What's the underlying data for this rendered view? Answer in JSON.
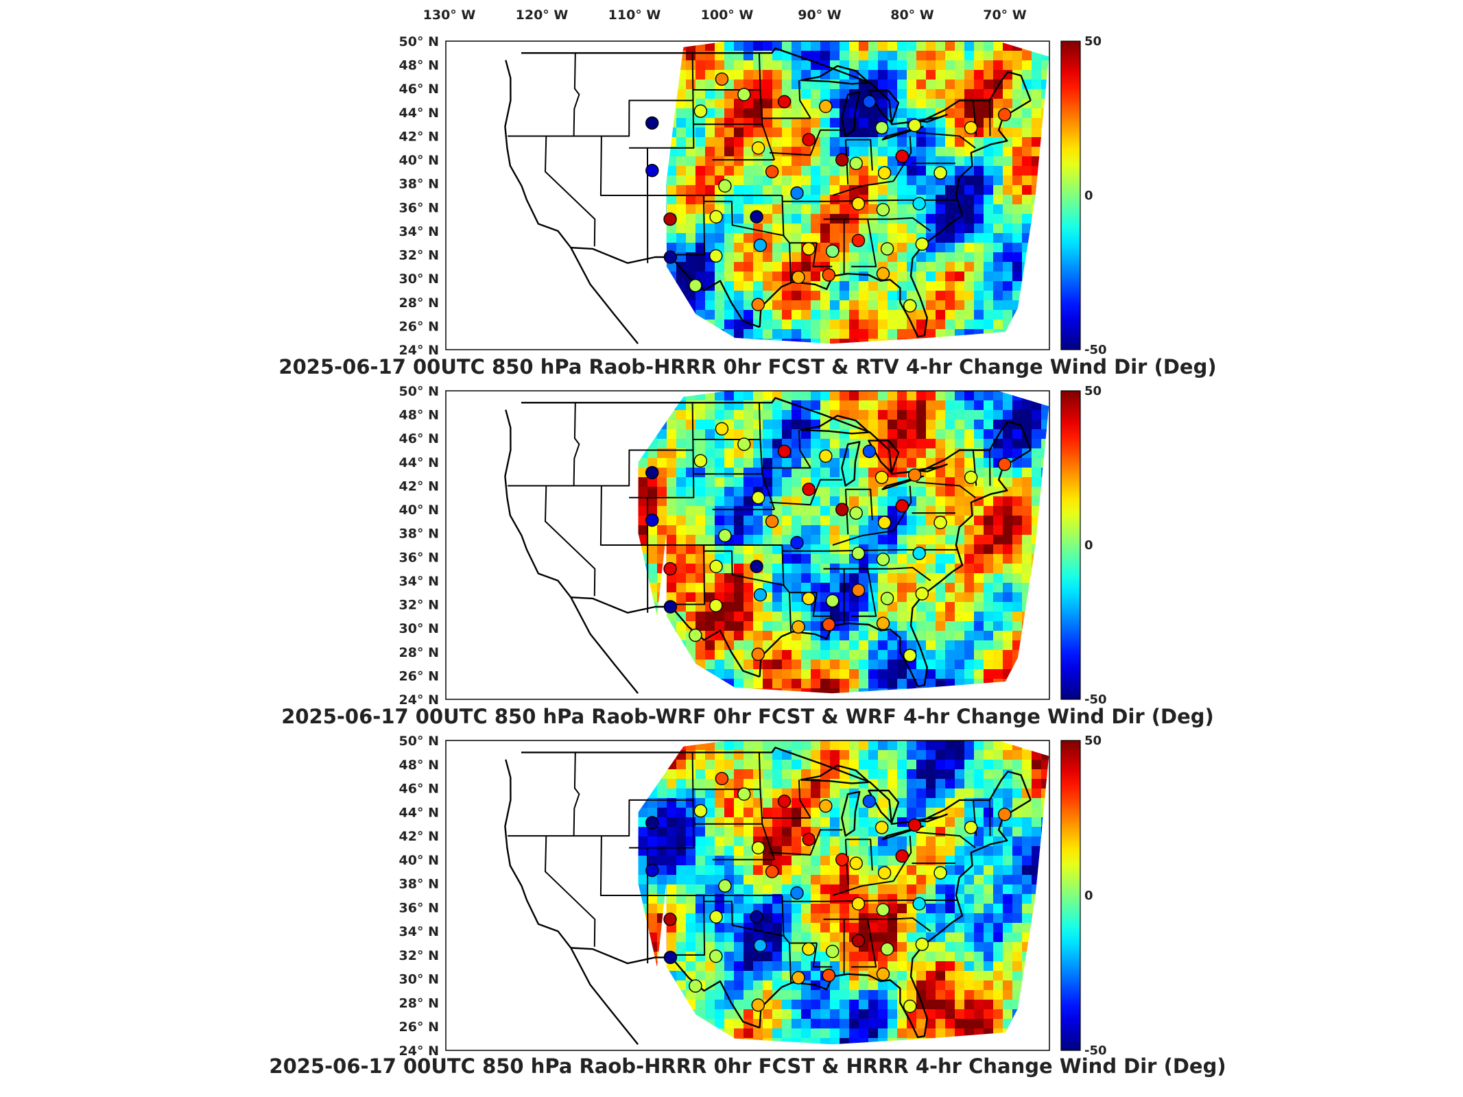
{
  "lon_labels": [
    "130° W",
    "120° W",
    "110° W",
    "100° W",
    "90° W",
    "80° W",
    "70° W"
  ],
  "lat_labels": [
    "50° N",
    "48° N",
    "46° N",
    "44° N",
    "42° N",
    "40° N",
    "38° N",
    "36° N",
    "34° N",
    "32° N",
    "30° N",
    "28° N",
    "26° N",
    "24° N"
  ],
  "colorbar": {
    "max_label": "50",
    "zero_label": "0",
    "min_label": "-50",
    "units": "Deg"
  },
  "panels": [
    {
      "title": "2025-06-17 00UTC 850 hPa Raob-HRRR 0hr FCST & RTV 4-hr Change Wind Dir (Deg)",
      "raobs": [
        {
          "lon": -108.5,
          "lat": 43.1,
          "value": -50
        },
        {
          "lon": -108.5,
          "lat": 39.1,
          "value": -42
        },
        {
          "lon": -106.6,
          "lat": 35.0,
          "value": 45
        },
        {
          "lon": -106.6,
          "lat": 31.8,
          "value": -48
        },
        {
          "lon": -100.8,
          "lat": 46.8,
          "value": 25
        },
        {
          "lon": -98.4,
          "lat": 45.5,
          "value": 5
        },
        {
          "lon": -94.0,
          "lat": 44.9,
          "value": 40
        },
        {
          "lon": -103.2,
          "lat": 44.1,
          "value": 10
        },
        {
          "lon": -89.5,
          "lat": 44.5,
          "value": 20
        },
        {
          "lon": -84.7,
          "lat": 44.9,
          "value": -30
        },
        {
          "lon": -83.5,
          "lat": 42.7,
          "value": 5
        },
        {
          "lon": -79.9,
          "lat": 42.9,
          "value": 10
        },
        {
          "lon": -73.8,
          "lat": 42.7,
          "value": 15
        },
        {
          "lon": -70.0,
          "lat": 43.8,
          "value": 30
        },
        {
          "lon": -95.6,
          "lat": 39.0,
          "value": 30
        },
        {
          "lon": -97.0,
          "lat": 41.0,
          "value": 15
        },
        {
          "lon": -91.5,
          "lat": 41.7,
          "value": 40
        },
        {
          "lon": -88.0,
          "lat": 40.0,
          "value": 45
        },
        {
          "lon": -86.5,
          "lat": 39.7,
          "value": 5
        },
        {
          "lon": -81.5,
          "lat": 40.3,
          "value": 40
        },
        {
          "lon": -77.5,
          "lat": 38.9,
          "value": 10
        },
        {
          "lon": -83.5,
          "lat": 38.9,
          "value": 15
        },
        {
          "lon": -100.7,
          "lat": 37.8,
          "value": 5
        },
        {
          "lon": -93.0,
          "lat": 37.2,
          "value": -25
        },
        {
          "lon": -86.5,
          "lat": 36.3,
          "value": 15
        },
        {
          "lon": -83.9,
          "lat": 35.8,
          "value": 5
        },
        {
          "lon": -80.0,
          "lat": 36.3,
          "value": -15
        },
        {
          "lon": -97.4,
          "lat": 35.2,
          "value": -48
        },
        {
          "lon": -101.7,
          "lat": 35.2,
          "value": 10
        },
        {
          "lon": -97.1,
          "lat": 32.8,
          "value": -20
        },
        {
          "lon": -92.0,
          "lat": 32.5,
          "value": 15
        },
        {
          "lon": -89.5,
          "lat": 32.3,
          "value": 0
        },
        {
          "lon": -86.7,
          "lat": 33.2,
          "value": 35
        },
        {
          "lon": -83.7,
          "lat": 32.5,
          "value": 5
        },
        {
          "lon": -80.0,
          "lat": 32.9,
          "value": 10
        },
        {
          "lon": -101.8,
          "lat": 31.9,
          "value": 10
        },
        {
          "lon": -104.0,
          "lat": 29.4,
          "value": 5
        },
        {
          "lon": -97.5,
          "lat": 27.8,
          "value": 25
        },
        {
          "lon": -93.2,
          "lat": 30.1,
          "value": 20
        },
        {
          "lon": -90.0,
          "lat": 30.3,
          "value": 30
        },
        {
          "lon": -84.3,
          "lat": 30.4,
          "value": 20
        },
        {
          "lon": -81.7,
          "lat": 27.7,
          "value": 10
        }
      ]
    },
    {
      "title": "2025-06-17 00UTC 850 hPa Raob-WRF 0hr FCST & WRF 4-hr Change Wind Dir (Deg)",
      "raobs": [
        {
          "lon": -108.5,
          "lat": 43.1,
          "value": -50
        },
        {
          "lon": -108.5,
          "lat": 39.1,
          "value": -42
        },
        {
          "lon": -106.6,
          "lat": 35.0,
          "value": 40
        },
        {
          "lon": -106.6,
          "lat": 31.8,
          "value": -48
        },
        {
          "lon": -100.8,
          "lat": 46.8,
          "value": 15
        },
        {
          "lon": -98.4,
          "lat": 45.5,
          "value": 5
        },
        {
          "lon": -94.0,
          "lat": 44.9,
          "value": 40
        },
        {
          "lon": -103.2,
          "lat": 44.1,
          "value": 10
        },
        {
          "lon": -89.5,
          "lat": 44.5,
          "value": 15
        },
        {
          "lon": -84.7,
          "lat": 44.9,
          "value": -30
        },
        {
          "lon": -83.5,
          "lat": 42.7,
          "value": 15
        },
        {
          "lon": -79.9,
          "lat": 42.9,
          "value": 25
        },
        {
          "lon": -73.8,
          "lat": 42.7,
          "value": 10
        },
        {
          "lon": -70.0,
          "lat": 43.8,
          "value": 30
        },
        {
          "lon": -95.6,
          "lat": 39.0,
          "value": 25
        },
        {
          "lon": -97.0,
          "lat": 41.0,
          "value": 10
        },
        {
          "lon": -91.5,
          "lat": 41.7,
          "value": 40
        },
        {
          "lon": -88.0,
          "lat": 40.0,
          "value": 45
        },
        {
          "lon": -86.5,
          "lat": 39.7,
          "value": 5
        },
        {
          "lon": -81.5,
          "lat": 40.3,
          "value": 40
        },
        {
          "lon": -77.5,
          "lat": 38.9,
          "value": 10
        },
        {
          "lon": -83.5,
          "lat": 38.9,
          "value": 15
        },
        {
          "lon": -100.7,
          "lat": 37.8,
          "value": 5
        },
        {
          "lon": -93.0,
          "lat": 37.2,
          "value": -35
        },
        {
          "lon": -86.5,
          "lat": 36.3,
          "value": 5
        },
        {
          "lon": -83.9,
          "lat": 35.8,
          "value": 5
        },
        {
          "lon": -80.0,
          "lat": 36.3,
          "value": -15
        },
        {
          "lon": -97.4,
          "lat": 35.2,
          "value": -48
        },
        {
          "lon": -101.7,
          "lat": 35.2,
          "value": 10
        },
        {
          "lon": -97.1,
          "lat": 32.8,
          "value": -20
        },
        {
          "lon": -92.0,
          "lat": 32.5,
          "value": 15
        },
        {
          "lon": -89.5,
          "lat": 32.3,
          "value": 5
        },
        {
          "lon": -86.7,
          "lat": 33.2,
          "value": 25
        },
        {
          "lon": -83.7,
          "lat": 32.5,
          "value": 5
        },
        {
          "lon": -80.0,
          "lat": 32.9,
          "value": 10
        },
        {
          "lon": -101.8,
          "lat": 31.9,
          "value": 10
        },
        {
          "lon": -104.0,
          "lat": 29.4,
          "value": 5
        },
        {
          "lon": -97.5,
          "lat": 27.8,
          "value": 25
        },
        {
          "lon": -93.2,
          "lat": 30.1,
          "value": 20
        },
        {
          "lon": -90.0,
          "lat": 30.3,
          "value": 30
        },
        {
          "lon": -84.3,
          "lat": 30.4,
          "value": 20
        },
        {
          "lon": -81.7,
          "lat": 27.7,
          "value": 10
        }
      ]
    },
    {
      "title": "2025-06-17 00UTC 850 hPa Raob-HRRR 0hr FCST & HRRR 4-hr Change Wind Dir (Deg)",
      "raobs": [
        {
          "lon": -108.5,
          "lat": 43.1,
          "value": -50
        },
        {
          "lon": -108.5,
          "lat": 39.1,
          "value": -42
        },
        {
          "lon": -106.6,
          "lat": 35.0,
          "value": 45
        },
        {
          "lon": -106.6,
          "lat": 31.8,
          "value": -48
        },
        {
          "lon": -100.8,
          "lat": 46.8,
          "value": 30
        },
        {
          "lon": -98.4,
          "lat": 45.5,
          "value": 5
        },
        {
          "lon": -94.0,
          "lat": 44.9,
          "value": 40
        },
        {
          "lon": -103.2,
          "lat": 44.1,
          "value": 10
        },
        {
          "lon": -89.5,
          "lat": 44.5,
          "value": 20
        },
        {
          "lon": -84.7,
          "lat": 44.9,
          "value": -30
        },
        {
          "lon": -83.5,
          "lat": 42.7,
          "value": 15
        },
        {
          "lon": -79.9,
          "lat": 42.9,
          "value": 40
        },
        {
          "lon": -73.8,
          "lat": 42.7,
          "value": 10
        },
        {
          "lon": -70.0,
          "lat": 43.8,
          "value": 25
        },
        {
          "lon": -95.6,
          "lat": 39.0,
          "value": 30
        },
        {
          "lon": -97.0,
          "lat": 41.0,
          "value": 10
        },
        {
          "lon": -91.5,
          "lat": 41.7,
          "value": 40
        },
        {
          "lon": -88.0,
          "lat": 40.0,
          "value": 35
        },
        {
          "lon": -86.5,
          "lat": 39.7,
          "value": 15
        },
        {
          "lon": -81.5,
          "lat": 40.3,
          "value": 40
        },
        {
          "lon": -77.5,
          "lat": 38.9,
          "value": 10
        },
        {
          "lon": -83.5,
          "lat": 38.9,
          "value": 15
        },
        {
          "lon": -100.7,
          "lat": 37.8,
          "value": 5
        },
        {
          "lon": -93.0,
          "lat": 37.2,
          "value": -25
        },
        {
          "lon": -86.5,
          "lat": 36.3,
          "value": 15
        },
        {
          "lon": -83.9,
          "lat": 35.8,
          "value": 5
        },
        {
          "lon": -80.0,
          "lat": 36.3,
          "value": -15
        },
        {
          "lon": -97.4,
          "lat": 35.2,
          "value": -48
        },
        {
          "lon": -101.7,
          "lat": 35.2,
          "value": 10
        },
        {
          "lon": -97.1,
          "lat": 32.8,
          "value": -20
        },
        {
          "lon": -92.0,
          "lat": 32.5,
          "value": 15
        },
        {
          "lon": -89.5,
          "lat": 32.3,
          "value": 5
        },
        {
          "lon": -86.7,
          "lat": 33.2,
          "value": 45
        },
        {
          "lon": -83.7,
          "lat": 32.5,
          "value": 5
        },
        {
          "lon": -80.0,
          "lat": 32.9,
          "value": 10
        },
        {
          "lon": -101.8,
          "lat": 31.9,
          "value": 5
        },
        {
          "lon": -104.0,
          "lat": 29.4,
          "value": 5
        },
        {
          "lon": -97.5,
          "lat": 27.8,
          "value": 20
        },
        {
          "lon": -93.2,
          "lat": 30.1,
          "value": 20
        },
        {
          "lon": -90.0,
          "lat": 30.3,
          "value": 30
        },
        {
          "lon": -84.3,
          "lat": 30.4,
          "value": 20
        },
        {
          "lon": -81.7,
          "lat": 27.7,
          "value": 10
        }
      ]
    }
  ]
}
